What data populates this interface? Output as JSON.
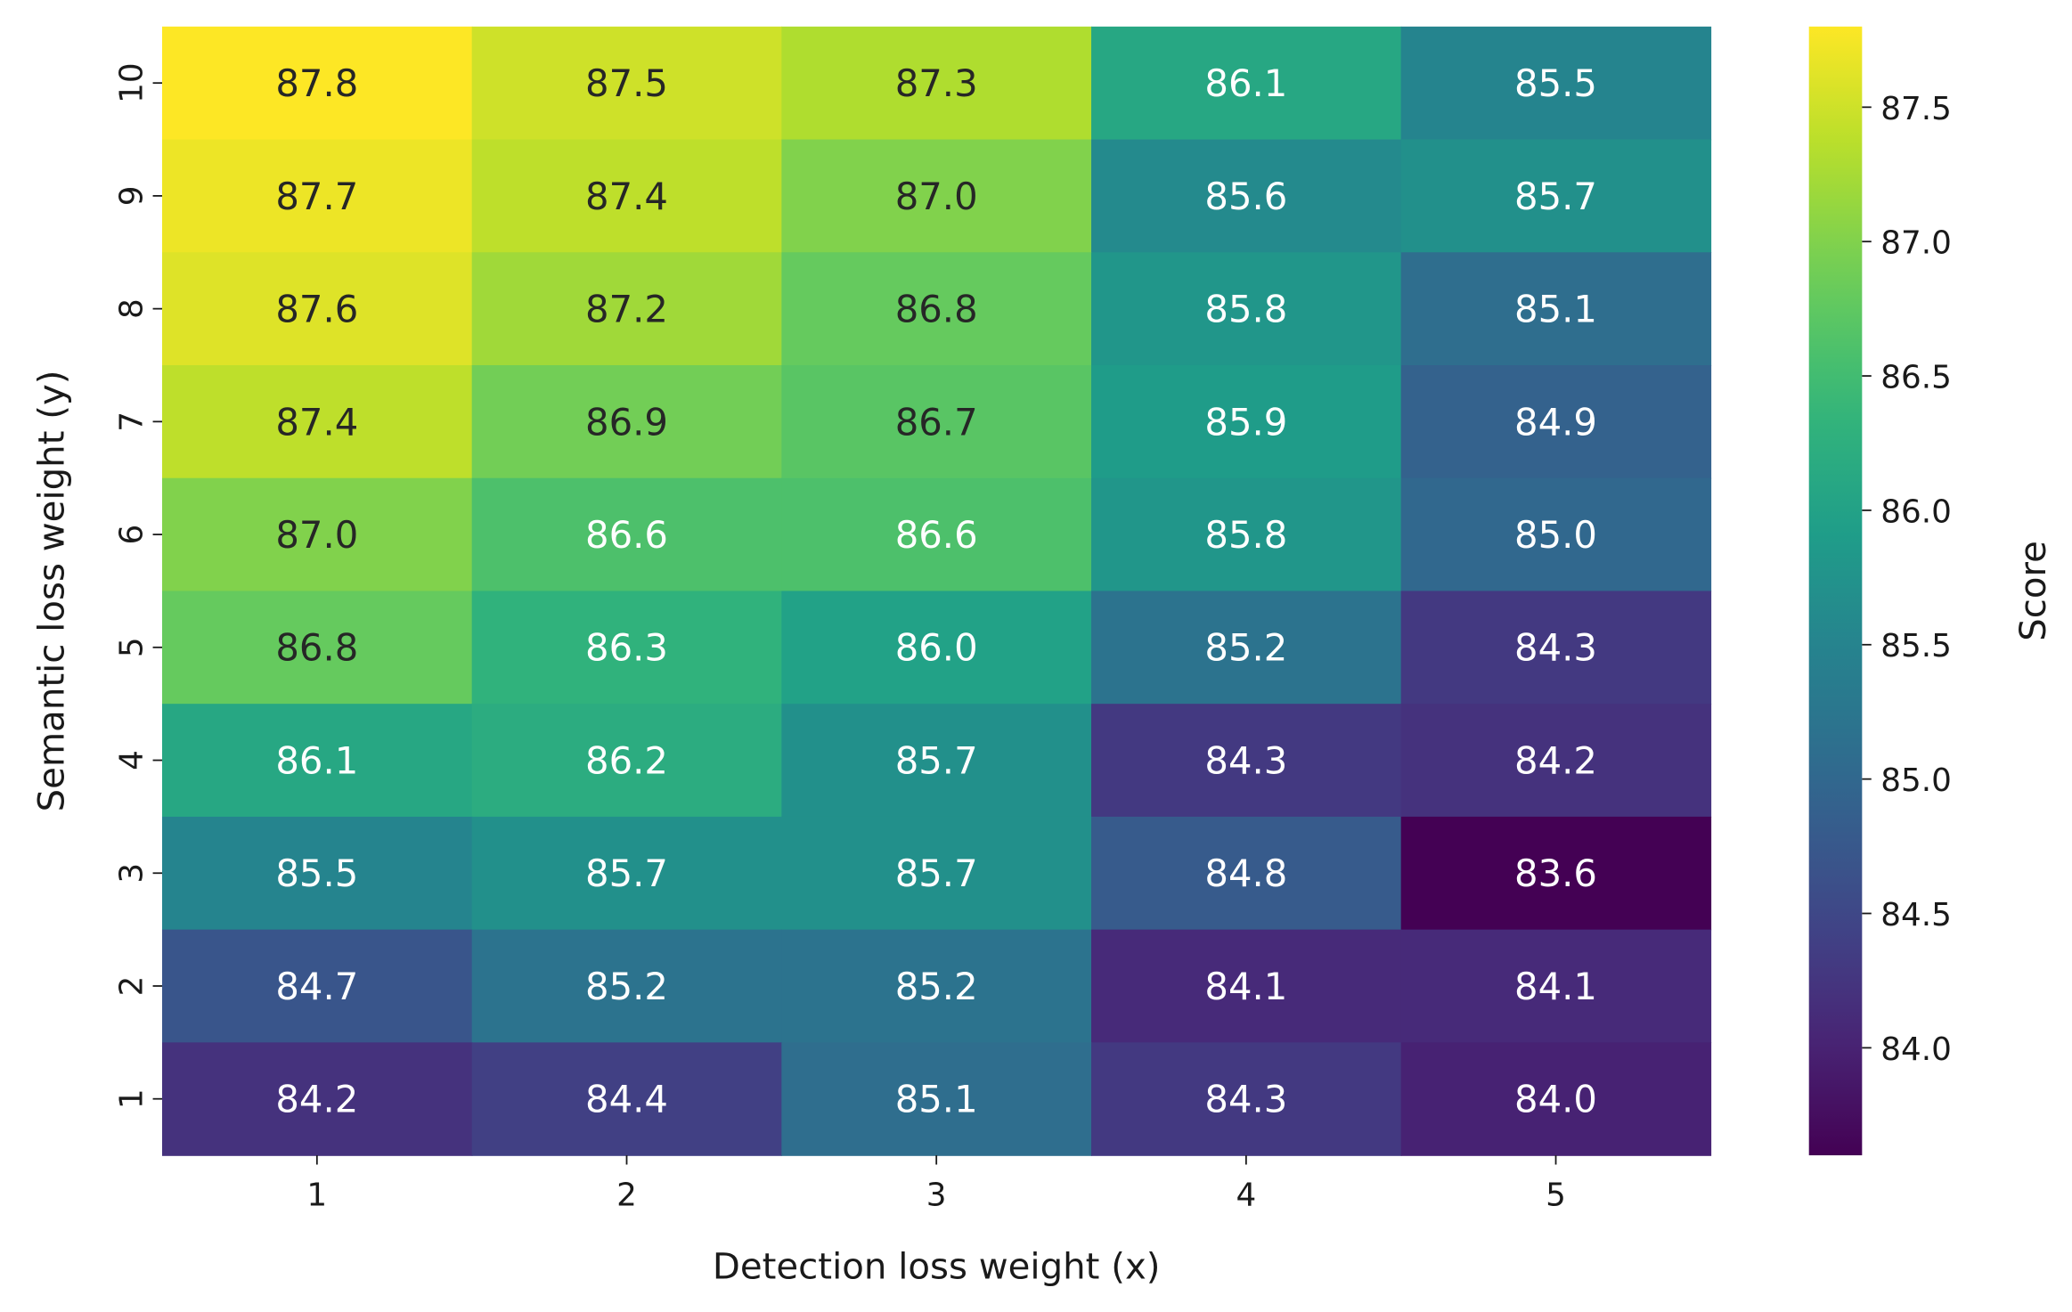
{
  "chart_data": {
    "type": "heatmap",
    "xlabel": "Detection loss weight (x)",
    "ylabel": "Semantic loss weight (y)",
    "x_categories": [
      "1",
      "2",
      "3",
      "4",
      "5"
    ],
    "y_categories": [
      "10",
      "9",
      "8",
      "7",
      "6",
      "5",
      "4",
      "3",
      "2",
      "1"
    ],
    "values": [
      [
        87.8,
        87.5,
        87.3,
        86.1,
        85.5
      ],
      [
        87.7,
        87.4,
        87.0,
        85.6,
        85.7
      ],
      [
        87.6,
        87.2,
        86.8,
        85.8,
        85.1
      ],
      [
        87.4,
        86.9,
        86.7,
        85.9,
        84.9
      ],
      [
        87.0,
        86.6,
        86.6,
        85.8,
        85.0
      ],
      [
        86.8,
        86.3,
        86.0,
        85.2,
        84.3
      ],
      [
        86.1,
        86.2,
        85.7,
        84.3,
        84.2
      ],
      [
        85.5,
        85.7,
        85.7,
        84.8,
        83.6
      ],
      [
        84.7,
        85.2,
        85.2,
        84.1,
        84.1
      ],
      [
        84.2,
        84.4,
        85.1,
        84.3,
        84.0
      ]
    ],
    "colormap": "viridis",
    "colorbar": {
      "label": "Score",
      "range": [
        83.6,
        87.8
      ],
      "ticks": [
        "84.0",
        "84.5",
        "85.0",
        "85.5",
        "86.0",
        "86.5",
        "87.0",
        "87.5"
      ]
    },
    "annotations": true
  }
}
